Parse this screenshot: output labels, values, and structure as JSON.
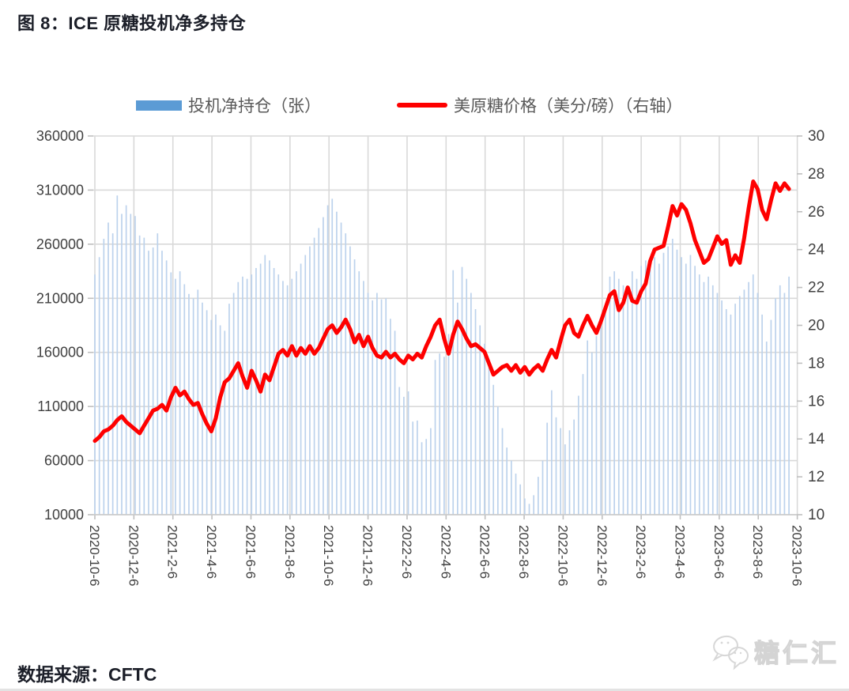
{
  "figure": {
    "title": "图 8：ICE 原糖投机净多持仓",
    "source_label": "数据来源：CFTC",
    "watermark_text": "糖仁汇"
  },
  "legend": [
    {
      "label": "投机净持仓（张）",
      "swatch": "bar",
      "color": "#5B9BD5"
    },
    {
      "label": "美原糖价格（美分/磅）（右轴）",
      "swatch": "line",
      "color": "#FE0000"
    }
  ],
  "chart_data": {
    "type": "combo-bar-line",
    "x_start_date": "2020-10-06",
    "x_frequency": "weekly",
    "x_tick_labels": [
      "2020-10-6",
      "2020-12-6",
      "2021-2-6",
      "2021-4-6",
      "2021-6-6",
      "2021-8-6",
      "2021-10-6",
      "2021-12-6",
      "2022-2-6",
      "2022-4-6",
      "2022-6-6",
      "2022-8-6",
      "2022-10-6",
      "2022-12-6",
      "2023-2-6",
      "2023-4-6",
      "2023-6-6",
      "2023-8-6",
      "2023-10-6"
    ],
    "left_axis": {
      "min": 10000,
      "max": 360000,
      "step": 50000,
      "tick_labels": [
        "360000",
        "310000",
        "260000",
        "210000",
        "160000",
        "110000",
        "60000",
        "10000"
      ]
    },
    "right_axis": {
      "min": 10,
      "max": 30,
      "step": 2,
      "tick_labels": [
        "30",
        "28",
        "26",
        "24",
        "22",
        "20",
        "18",
        "16",
        "14",
        "12",
        "10"
      ]
    },
    "grid_color": "#D9D9D9",
    "axis_text_color": "#404040",
    "series": [
      {
        "name": "投机净持仓（张）",
        "type": "bar",
        "axis": "left",
        "color": "#BCD2EC",
        "legend_color": "#5B9BD5",
        "values": [
          232000,
          248000,
          265000,
          280000,
          270000,
          305000,
          288000,
          296000,
          288000,
          286000,
          268000,
          266000,
          254000,
          257000,
          270000,
          254000,
          245000,
          234000,
          228000,
          235000,
          223000,
          214000,
          210000,
          218000,
          206000,
          199000,
          190000,
          195000,
          185000,
          180000,
          205000,
          215000,
          225000,
          230000,
          228000,
          232000,
          238000,
          242000,
          250000,
          245000,
          238000,
          232000,
          226000,
          222000,
          228000,
          235000,
          242000,
          250000,
          258000,
          266000,
          275000,
          285000,
          296000,
          302000,
          290000,
          280000,
          270000,
          258000,
          246000,
          235000,
          226000,
          215000,
          208000,
          215000,
          209000,
          210000,
          191000,
          180000,
          128000,
          119000,
          124000,
          96000,
          97000,
          77000,
          80000,
          90000,
          153000,
          159000,
          156000,
          177000,
          236000,
          206000,
          239000,
          228000,
          215000,
          200000,
          185000,
          168000,
          150000,
          130000,
          110000,
          90000,
          72000,
          60000,
          48000,
          38000,
          25000,
          20000,
          28000,
          45000,
          60000,
          95000,
          125000,
          100000,
          90000,
          75000,
          88000,
          98000,
          120000,
          140000,
          171000,
          160000,
          175000,
          185000,
          205000,
          230000,
          235000,
          228000,
          222000,
          215000,
          235000,
          228000,
          240000,
          245000,
          238000,
          248000,
          242000,
          252000,
          258000,
          265000,
          255000,
          248000,
          242000,
          250000,
          240000,
          232000,
          225000,
          230000,
          222000,
          215000,
          208000,
          200000,
          195000,
          205000,
          212000,
          218000,
          225000,
          232000,
          215000,
          195000,
          170000,
          190000,
          210000,
          222000,
          215000,
          230000
        ]
      },
      {
        "name": "美原糖价格（美分/磅）（右轴）",
        "type": "line",
        "axis": "right",
        "color": "#FE0000",
        "values": [
          13.9,
          14.1,
          14.4,
          14.5,
          14.7,
          15.0,
          15.2,
          14.9,
          14.7,
          14.5,
          14.3,
          14.7,
          15.1,
          15.5,
          15.6,
          15.8,
          15.5,
          16.2,
          16.7,
          16.3,
          16.5,
          16.1,
          15.8,
          15.9,
          15.3,
          14.8,
          14.4,
          15.1,
          16.2,
          17.0,
          17.2,
          17.6,
          18.0,
          17.3,
          16.7,
          17.6,
          17.1,
          16.5,
          17.4,
          17.1,
          17.8,
          18.5,
          18.7,
          18.4,
          18.9,
          18.4,
          18.8,
          18.5,
          18.9,
          18.5,
          18.8,
          19.3,
          19.8,
          20.0,
          19.6,
          19.9,
          20.3,
          19.8,
          19.1,
          19.5,
          18.9,
          19.4,
          18.8,
          18.4,
          18.3,
          18.6,
          18.3,
          18.5,
          18.2,
          18.0,
          18.4,
          18.2,
          18.5,
          18.3,
          18.9,
          19.4,
          20.0,
          20.3,
          19.3,
          18.5,
          19.5,
          20.2,
          19.8,
          19.3,
          18.9,
          19.0,
          18.8,
          18.6,
          18.0,
          17.4,
          17.6,
          17.8,
          17.9,
          17.6,
          17.9,
          17.5,
          17.8,
          17.4,
          17.7,
          17.9,
          17.6,
          18.2,
          18.7,
          18.3,
          19.2,
          20.0,
          20.3,
          19.6,
          19.4,
          20.0,
          20.5,
          20.0,
          19.6,
          20.2,
          20.9,
          21.6,
          21.8,
          20.8,
          21.2,
          22.0,
          21.3,
          21.2,
          21.8,
          22.2,
          23.4,
          24.0,
          24.1,
          24.2,
          25.2,
          26.3,
          25.8,
          26.4,
          26.1,
          25.4,
          24.5,
          23.9,
          23.3,
          23.5,
          24.1,
          24.7,
          24.3,
          24.5,
          23.2,
          23.7,
          23.3,
          24.6,
          26.2,
          27.6,
          27.2,
          26.1,
          25.6,
          26.6,
          27.5,
          27.1,
          27.5,
          27.2
        ]
      }
    ]
  }
}
